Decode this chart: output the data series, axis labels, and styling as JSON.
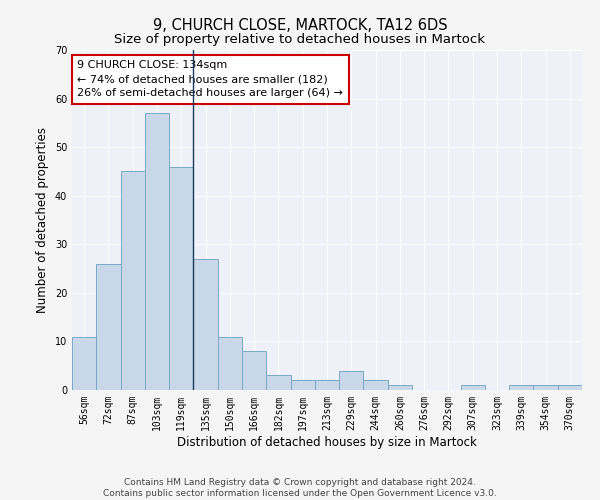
{
  "title": "9, CHURCH CLOSE, MARTOCK, TA12 6DS",
  "subtitle": "Size of property relative to detached houses in Martock",
  "xlabel": "Distribution of detached houses by size in Martock",
  "ylabel": "Number of detached properties",
  "categories": [
    "56sqm",
    "72sqm",
    "87sqm",
    "103sqm",
    "119sqm",
    "135sqm",
    "150sqm",
    "166sqm",
    "182sqm",
    "197sqm",
    "213sqm",
    "229sqm",
    "244sqm",
    "260sqm",
    "276sqm",
    "292sqm",
    "307sqm",
    "323sqm",
    "339sqm",
    "354sqm",
    "370sqm"
  ],
  "values": [
    11,
    26,
    45,
    57,
    46,
    27,
    11,
    8,
    3,
    2,
    2,
    4,
    2,
    1,
    0,
    0,
    1,
    0,
    1,
    1,
    1
  ],
  "bar_color": "#c8d8e8",
  "bar_edge_color": "#7aaac8",
  "highlight_index": 4,
  "highlight_line_color": "#1a3a5c",
  "annotation_line1": "9 CHURCH CLOSE: 134sqm",
  "annotation_line2": "← 74% of detached houses are smaller (182)",
  "annotation_line3": "26% of semi-detached houses are larger (64) →",
  "annotation_box_color": "#ffffff",
  "annotation_box_edge_color": "#cc0000",
  "ylim": [
    0,
    70
  ],
  "yticks": [
    0,
    10,
    20,
    30,
    40,
    50,
    60,
    70
  ],
  "footer_text": "Contains HM Land Registry data © Crown copyright and database right 2024.\nContains public sector information licensed under the Open Government Licence v3.0.",
  "bg_color": "#eef2f8",
  "grid_color": "#ffffff",
  "title_fontsize": 10.5,
  "subtitle_fontsize": 9.5,
  "axis_label_fontsize": 8.5,
  "tick_fontsize": 7,
  "annotation_fontsize": 8,
  "footer_fontsize": 6.5
}
